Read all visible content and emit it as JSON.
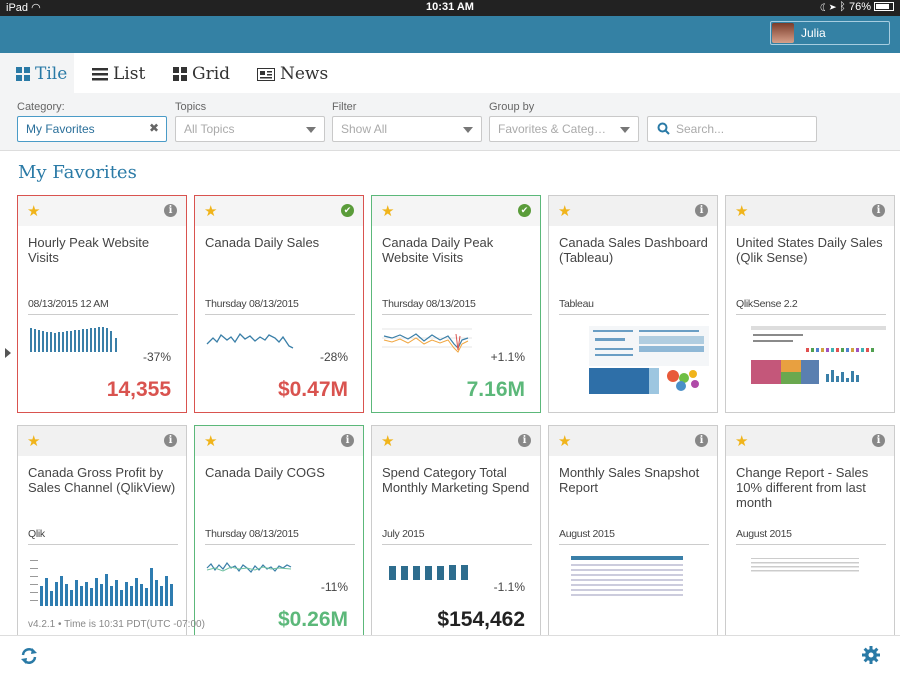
{
  "status": {
    "device": "iPad",
    "time": "10:31 AM",
    "battery": "76%"
  },
  "user": {
    "name": "Julia"
  },
  "tabs": [
    {
      "label": "Tile",
      "icon": "tile-icon",
      "active": true
    },
    {
      "label": "List",
      "icon": "list-icon"
    },
    {
      "label": "Grid",
      "icon": "grid-icon"
    },
    {
      "label": "News",
      "icon": "news-icon"
    }
  ],
  "filters": {
    "category": {
      "label": "Category:",
      "value": "My Favorites"
    },
    "topics": {
      "label": "Topics",
      "placeholder": "All Topics"
    },
    "filter": {
      "label": "Filter",
      "placeholder": "Show All"
    },
    "group_by": {
      "label": "Group by",
      "placeholder": "Favorites & Categ…"
    },
    "search": {
      "placeholder": "Search..."
    }
  },
  "section": {
    "title": "My Favorites"
  },
  "cards": [
    {
      "title": "Hourly Peak Website Visits",
      "subtitle": "08/13/2015 12 AM",
      "pct": "-37%",
      "value": "14,355",
      "value_color": "#d9534f",
      "status": "info"
    },
    {
      "title": "Canada Daily Sales",
      "subtitle": "Thursday 08/13/2015",
      "pct": "-28%",
      "value": "$0.47M",
      "value_color": "#d9534f",
      "status": "check"
    },
    {
      "title": "Canada Daily Peak Website Visits",
      "subtitle": "Thursday 08/13/2015",
      "pct": "+1.1%",
      "value": "7.16M",
      "value_color": "#5cb87a",
      "status": "check"
    },
    {
      "title": "Canada Sales Dashboard (Tableau)",
      "subtitle": "Tableau",
      "status": "info"
    },
    {
      "title": "United States Daily Sales (Qlik Sense)",
      "subtitle": "QlikSense 2.2",
      "status": "info"
    },
    {
      "title": "Canada Gross Profit by Sales Channel (QlikView)",
      "subtitle": "Qlik",
      "status": "info"
    },
    {
      "title": "Canada Daily COGS",
      "subtitle": "Thursday 08/13/2015",
      "pct": "-11%",
      "value": "$0.26M",
      "value_color": "#5cb87a",
      "status": "info"
    },
    {
      "title": "Spend Category Total Monthly Marketing Spend",
      "subtitle": "July 2015",
      "pct": "-1.1%",
      "value": "$154,462",
      "value_color": "#222222",
      "status": "info"
    },
    {
      "title": "Monthly Sales Snapshot Report",
      "subtitle": "August 2015",
      "status": "info"
    },
    {
      "title": "Change Report - Sales 10% different from last month",
      "subtitle": "August 2015",
      "status": "info"
    }
  ],
  "footer": {
    "version": "v4.2.1 • Time is 10:31 PDT(UTC -07:00)"
  },
  "colors": {
    "accent": "#3481a4",
    "link": "#2a7aa6",
    "negative": "#d9534f",
    "positive": "#5cb87a",
    "star": "#f0b41b"
  }
}
